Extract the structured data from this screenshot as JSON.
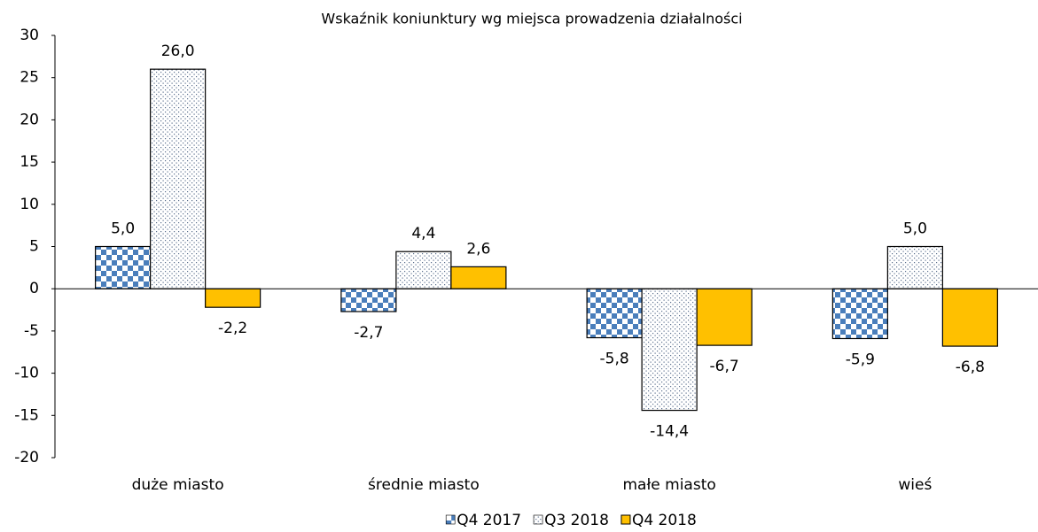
{
  "chart_data": {
    "type": "bar",
    "title": "Wskaźnik koniunktury wg miejsca prowadzenia działalności",
    "categories": [
      "duże miasto",
      "średnie miasto",
      "małe miasto",
      "wieś"
    ],
    "series": [
      {
        "name": "Q4 2017",
        "color": "#4a7ebb",
        "pattern": "checker",
        "values": [
          5.0,
          -2.7,
          -5.8,
          -5.9
        ],
        "value_labels": [
          "5,0",
          "-2,7",
          "-5,8",
          "-5,9"
        ]
      },
      {
        "name": "Q3 2018",
        "color": "#5a6e8c",
        "pattern": "dots",
        "values": [
          26.0,
          4.4,
          -14.4,
          5.0
        ],
        "value_labels": [
          "26,0",
          "4,4",
          "-14,4",
          "5,0"
        ]
      },
      {
        "name": "Q4 2018",
        "color": "#ffc000",
        "pattern": "solid",
        "values": [
          -2.2,
          2.6,
          -6.7,
          -6.8
        ],
        "value_labels": [
          "-2,2",
          "2,6",
          "-6,7",
          "-6,8"
        ]
      }
    ],
    "ylim": [
      -20,
      30
    ],
    "yticks": [
      -20,
      -15,
      -10,
      -5,
      0,
      5,
      10,
      15,
      20,
      25,
      30
    ],
    "legend": "bottom"
  }
}
